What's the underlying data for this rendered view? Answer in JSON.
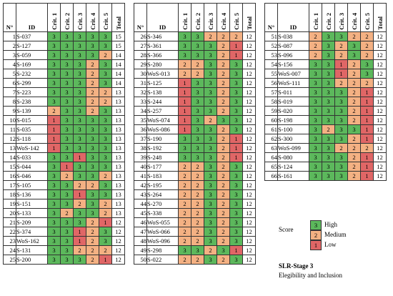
{
  "headers": {
    "n": "N°",
    "id": "ID",
    "c1": "Crit. 1",
    "c2": "Crit. 2",
    "c3": "Crit. 3",
    "c4": "Crit. 4",
    "c5": "Crit. 5",
    "total": "Total"
  },
  "colors": {
    "3": "#5cb85c",
    "2": "#f4b183",
    "1": "#e06666"
  },
  "tables": [
    {
      "rows": [
        [
          "1",
          "S-037",
          3,
          3,
          3,
          3,
          3,
          15
        ],
        [
          "2",
          "S-127",
          3,
          3,
          3,
          3,
          3,
          15
        ],
        [
          "3",
          "S-059",
          3,
          3,
          3,
          3,
          2,
          14
        ],
        [
          "4",
          "S-169",
          3,
          3,
          3,
          2,
          3,
          14
        ],
        [
          "5",
          "S-232",
          3,
          3,
          3,
          2,
          3,
          14
        ],
        [
          "6",
          "S-299",
          3,
          3,
          3,
          2,
          3,
          14
        ],
        [
          "7",
          "S-223",
          3,
          3,
          3,
          2,
          2,
          13
        ],
        [
          "8",
          "S-238",
          3,
          3,
          3,
          2,
          2,
          13
        ],
        [
          "9",
          "S-139",
          2,
          3,
          3,
          2,
          3,
          13
        ],
        [
          "10",
          "S-015",
          1,
          3,
          3,
          3,
          3,
          13
        ],
        [
          "11",
          "S-035",
          1,
          3,
          3,
          3,
          3,
          13
        ],
        [
          "12",
          "S-118",
          1,
          3,
          3,
          3,
          3,
          13
        ],
        [
          "13",
          "WoS-142",
          1,
          3,
          3,
          3,
          3,
          13
        ],
        [
          "14",
          "S-033",
          3,
          3,
          1,
          3,
          3,
          13
        ],
        [
          "15",
          "S-044",
          3,
          1,
          3,
          3,
          3,
          13
        ],
        [
          "16",
          "S-046",
          3,
          2,
          3,
          3,
          2,
          13
        ],
        [
          "17",
          "S-105",
          3,
          3,
          2,
          2,
          3,
          13
        ],
        [
          "18",
          "S-136",
          3,
          3,
          1,
          3,
          3,
          13
        ],
        [
          "19",
          "S-151",
          3,
          3,
          2,
          3,
          2,
          13
        ],
        [
          "20",
          "S-133",
          3,
          2,
          3,
          3,
          2,
          13
        ],
        [
          "21",
          "S-209",
          3,
          3,
          3,
          2,
          1,
          12
        ],
        [
          "22",
          "S-374",
          3,
          3,
          1,
          2,
          3,
          12
        ],
        [
          "23",
          "WoS-162",
          3,
          3,
          1,
          2,
          3,
          12
        ],
        [
          "24",
          "S-131",
          3,
          3,
          2,
          2,
          2,
          12
        ],
        [
          "25",
          "S-200",
          3,
          3,
          3,
          2,
          1,
          12
        ]
      ]
    },
    {
      "rows": [
        [
          "26",
          "S-346",
          3,
          3,
          2,
          2,
          2,
          12
        ],
        [
          "27",
          "S-361",
          3,
          3,
          3,
          2,
          1,
          12
        ],
        [
          "28",
          "S-366",
          3,
          3,
          3,
          2,
          1,
          12
        ],
        [
          "29",
          "S-280",
          2,
          2,
          3,
          2,
          3,
          12
        ],
        [
          "30",
          "WoS-013",
          2,
          2,
          3,
          2,
          3,
          12
        ],
        [
          "31",
          "S-125",
          1,
          3,
          3,
          2,
          3,
          12
        ],
        [
          "32",
          "S-138",
          1,
          3,
          3,
          2,
          3,
          12
        ],
        [
          "33",
          "S-244",
          1,
          3,
          3,
          2,
          3,
          12
        ],
        [
          "34",
          "S-257",
          1,
          3,
          3,
          2,
          3,
          12
        ],
        [
          "35",
          "WoS-074",
          1,
          3,
          2,
          3,
          3,
          12
        ],
        [
          "36",
          "WoS-086",
          1,
          3,
          3,
          2,
          3,
          12
        ],
        [
          "37",
          "S-190",
          3,
          3,
          3,
          2,
          1,
          12
        ],
        [
          "38",
          "S-192",
          3,
          3,
          3,
          2,
          1,
          12
        ],
        [
          "39",
          "S-248",
          3,
          3,
          3,
          2,
          1,
          12
        ],
        [
          "40",
          "S-177",
          2,
          2,
          3,
          2,
          3,
          12
        ],
        [
          "41",
          "S-183",
          2,
          2,
          3,
          2,
          3,
          12
        ],
        [
          "42",
          "S-195",
          2,
          2,
          3,
          2,
          3,
          12
        ],
        [
          "43",
          "S-264",
          2,
          2,
          3,
          2,
          3,
          12
        ],
        [
          "44",
          "S-270",
          2,
          2,
          3,
          2,
          3,
          12
        ],
        [
          "45",
          "S-338",
          2,
          2,
          3,
          2,
          3,
          12
        ],
        [
          "46",
          "WoS-055",
          2,
          2,
          3,
          2,
          3,
          12
        ],
        [
          "47",
          "WoS-066",
          2,
          2,
          3,
          2,
          3,
          12
        ],
        [
          "48",
          "WoS-096",
          2,
          2,
          3,
          2,
          3,
          12
        ],
        [
          "49",
          "S-298",
          3,
          3,
          2,
          3,
          1,
          12
        ],
        [
          "50",
          "S-022",
          2,
          2,
          3,
          2,
          3,
          12
        ]
      ]
    },
    {
      "rows": [
        [
          "51",
          "S-038",
          2,
          3,
          3,
          2,
          2,
          12
        ],
        [
          "52",
          "S-087",
          2,
          3,
          2,
          3,
          2,
          12
        ],
        [
          "53",
          "S-096",
          2,
          3,
          2,
          3,
          2,
          12
        ],
        [
          "54",
          "S-156",
          3,
          3,
          1,
          2,
          3,
          12
        ],
        [
          "55",
          "WoS-007",
          3,
          3,
          1,
          2,
          3,
          12
        ],
        [
          "56",
          "WoS-111",
          3,
          3,
          2,
          2,
          2,
          12
        ],
        [
          "57",
          "S-011",
          3,
          3,
          3,
          2,
          1,
          12
        ],
        [
          "58",
          "S-019",
          3,
          3,
          3,
          2,
          1,
          12
        ],
        [
          "59",
          "S-020",
          3,
          3,
          3,
          2,
          1,
          12
        ],
        [
          "60",
          "S-198",
          3,
          3,
          3,
          2,
          1,
          12
        ],
        [
          "61",
          "S-100",
          3,
          2,
          3,
          3,
          1,
          12
        ],
        [
          "62",
          "S-300",
          3,
          3,
          3,
          2,
          1,
          12
        ],
        [
          "63",
          "WoS-099",
          3,
          3,
          2,
          2,
          2,
          12
        ],
        [
          "64",
          "S-080",
          3,
          3,
          3,
          2,
          1,
          12
        ],
        [
          "65",
          "S-124",
          3,
          3,
          3,
          2,
          1,
          12
        ],
        [
          "66",
          "S-161",
          3,
          3,
          3,
          2,
          1,
          12
        ]
      ]
    }
  ],
  "legend": {
    "title": "Score",
    "items": [
      {
        "value": "3",
        "label": "High"
      },
      {
        "value": "2",
        "label": "Medium"
      },
      {
        "value": "1",
        "label": "Low"
      }
    ]
  },
  "caption": {
    "title": "SLR-Stage 3",
    "subtitle": "Elegibility and Inclusion"
  }
}
